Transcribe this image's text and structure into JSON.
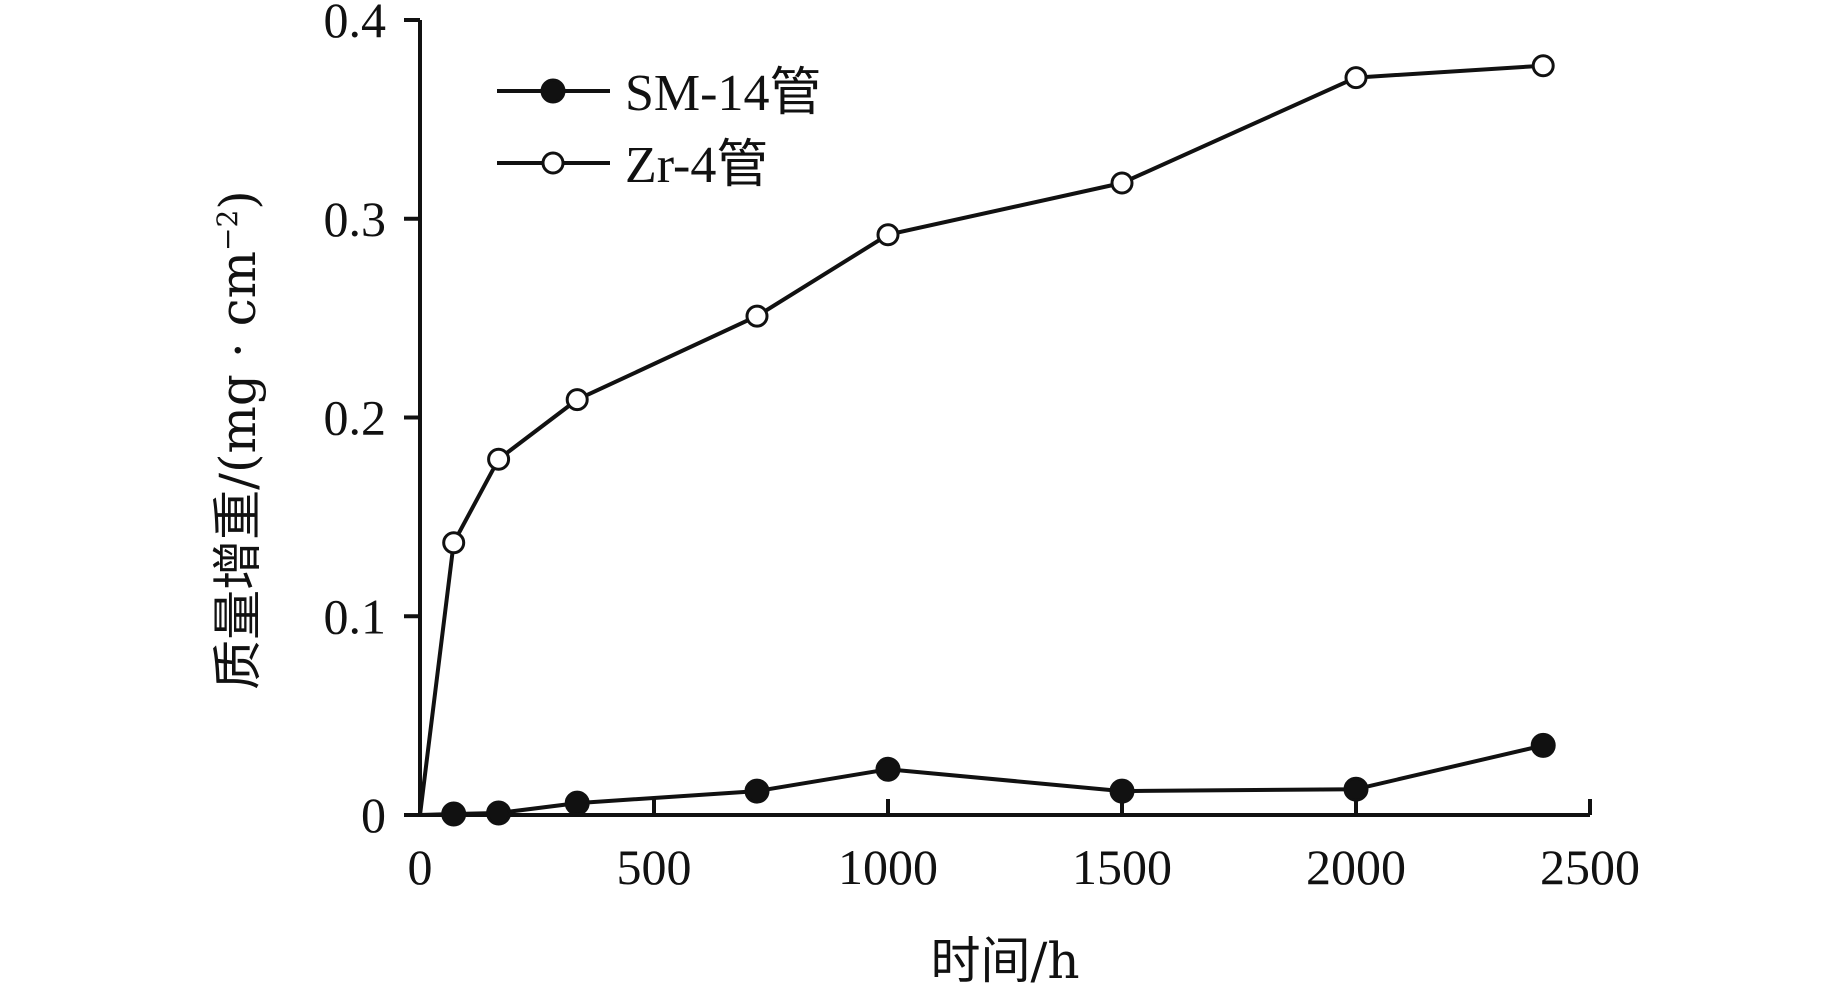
{
  "chart_data": {
    "type": "line",
    "xlabel": "时间/h",
    "ylabel": "质量增重/(mg · cm",
    "ylabel_superscript": "−2",
    "ylabel_suffix": ")",
    "xlim": [
      0,
      2500
    ],
    "ylim": [
      0,
      0.4
    ],
    "xticks": [
      0,
      500,
      1000,
      1500,
      2000,
      2500
    ],
    "xtick_labels": [
      "0",
      "500",
      "1000",
      "1500",
      "2000",
      "2500"
    ],
    "yticks": [
      0,
      0.1,
      0.2,
      0.3,
      0.4
    ],
    "ytick_labels": [
      "0",
      "0.1",
      "0.2",
      "0.3",
      "0.4"
    ],
    "grid": false,
    "legend_position": "top-left",
    "series": [
      {
        "name": "SM-14管",
        "marker": "filled-circle",
        "x": [
          0,
          72,
          168,
          336,
          720,
          1000,
          1500,
          2000,
          2400
        ],
        "y": [
          0,
          0.0005,
          0.001,
          0.006,
          0.012,
          0.023,
          0.012,
          0.013,
          0.035
        ]
      },
      {
        "name": "Zr-4管",
        "marker": "open-circle",
        "x": [
          0,
          72,
          168,
          336,
          720,
          1000,
          1500,
          2000,
          2400
        ],
        "y": [
          0,
          0.137,
          0.179,
          0.209,
          0.251,
          0.292,
          0.318,
          0.371,
          0.377
        ]
      }
    ],
    "colors": {
      "line": "#111111",
      "marker_fill_filled": "#111111",
      "marker_fill_open": "#ffffff"
    }
  }
}
